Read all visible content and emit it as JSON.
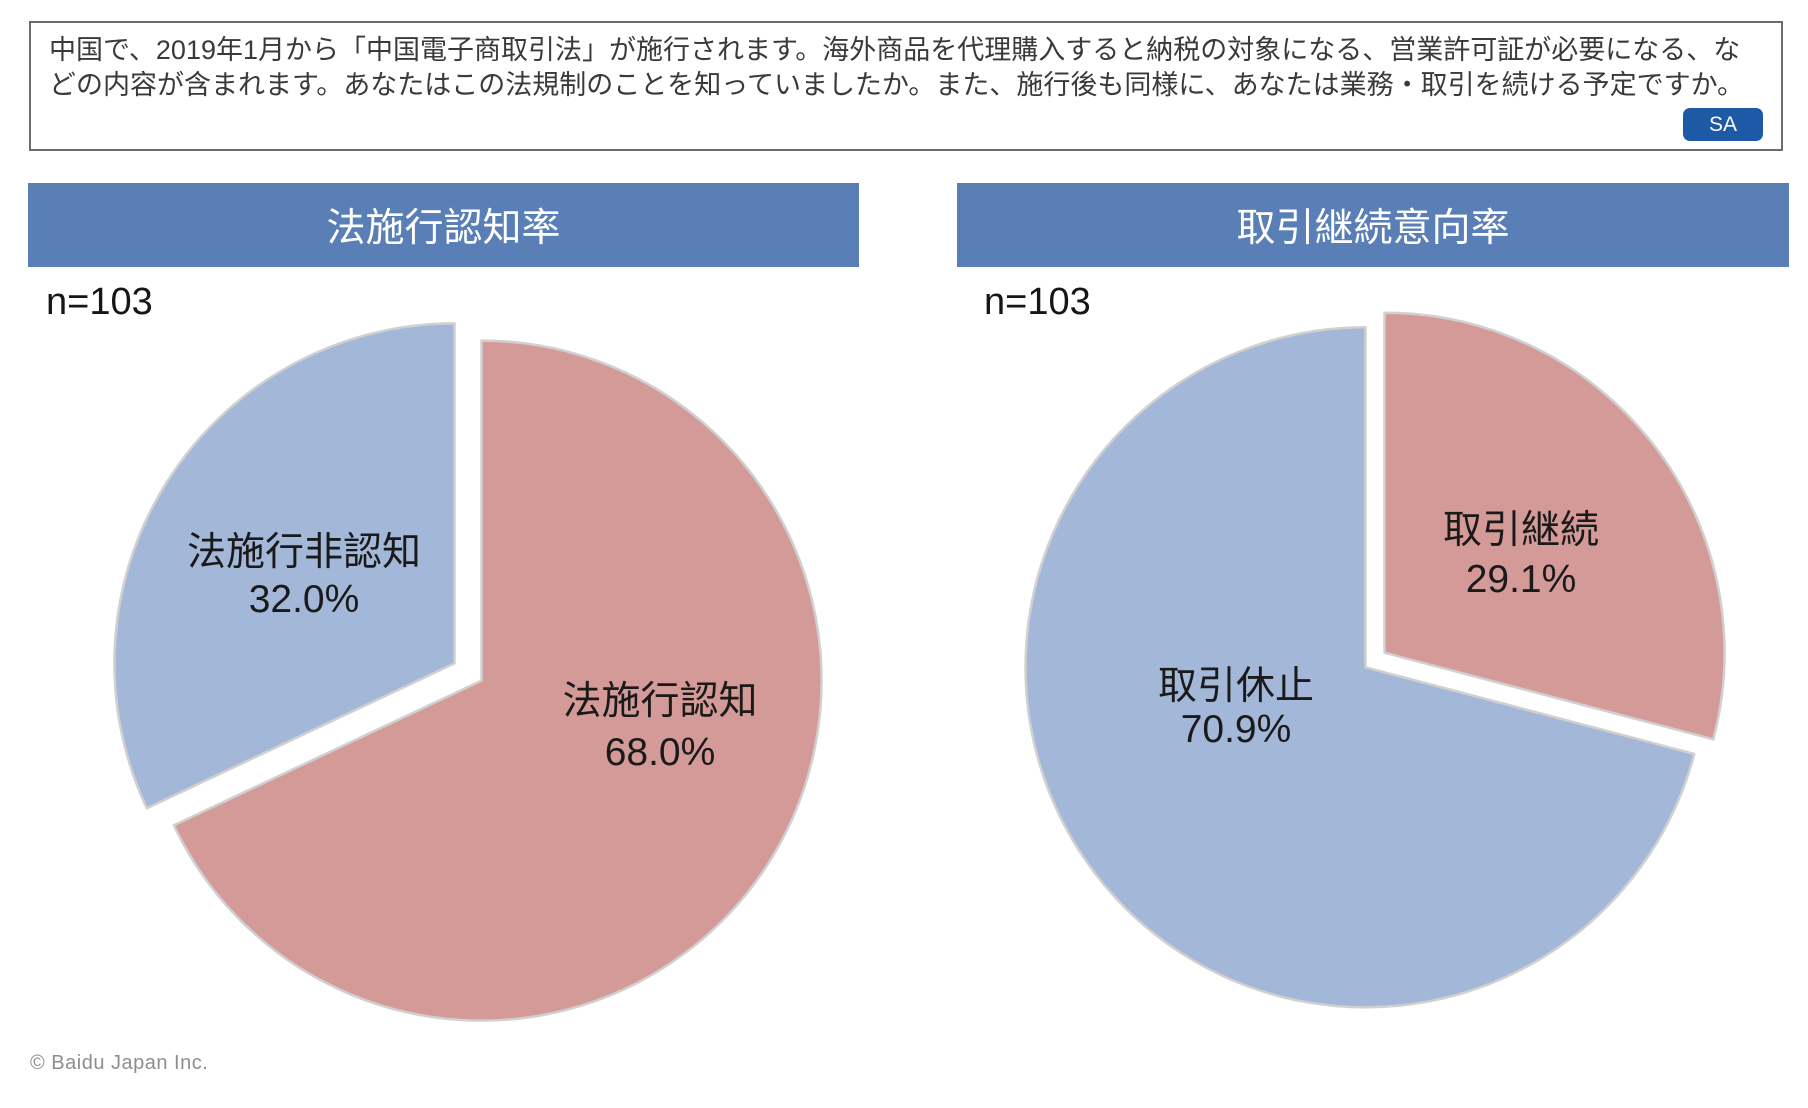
{
  "header": {
    "question_text": "中国で、2019年1月から「中国電子商取引法」が施行されます。海外商品を代理購入すると納税の対象になる、営業許可証が必要になる、などの内容が含まれます。あなたはこの法規制のことを知っていましたか。また、施行後も同様に、あなたは業務・取引を続ける予定ですか。",
    "question_type_badge": "SA"
  },
  "colors": {
    "title_bar": "#5a7fb7",
    "badge_blue": "#1e59a6",
    "pie_pink": "#d49a98",
    "pie_blue": "#a3b8d8",
    "slice_stroke": "#d0d0d0"
  },
  "chart_data": [
    {
      "type": "pie",
      "title": "法施行認知率",
      "n_label": "n=103",
      "start_angle_deg": 0,
      "clockwise": true,
      "exploded": true,
      "slices": [
        {
          "label": "法施行認知",
          "value": 68.0,
          "pct_label": "68.0%",
          "color": "#d49a98"
        },
        {
          "label": "法施行非認知",
          "value": 32.0,
          "pct_label": "32.0%",
          "color": "#a3b8d8"
        }
      ]
    },
    {
      "type": "pie",
      "title": "取引継続意向率",
      "n_label": "n=103",
      "start_angle_deg": 0,
      "clockwise": true,
      "exploded": true,
      "slices": [
        {
          "label": "取引継続",
          "value": 29.1,
          "pct_label": "29.1%",
          "color": "#d49a98"
        },
        {
          "label": "取引休止",
          "value": 70.9,
          "pct_label": "70.9%",
          "color": "#a3b8d8"
        }
      ]
    }
  ],
  "footer": {
    "copyright": "© Baidu Japan Inc."
  }
}
